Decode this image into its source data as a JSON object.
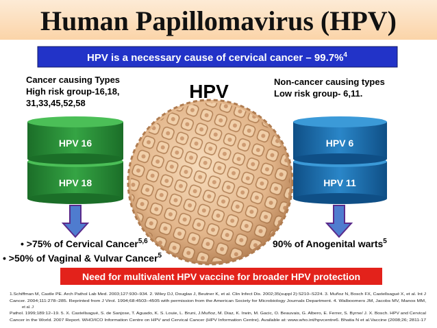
{
  "title": "Human Papillomavirus (HPV)",
  "banner": {
    "text": "HPV is a necessary cause of cervical cancer – 99.7%",
    "sup": "4"
  },
  "left": {
    "lines": [
      "Cancer causing Types",
      "High risk group-16,18,",
      "31,33,45,52,58"
    ],
    "cylinders": [
      "HPV 16",
      "HPV 18"
    ]
  },
  "center": {
    "label": "HPV"
  },
  "right": {
    "lines": [
      "Non-cancer causing types",
      "Low risk group- 6,11."
    ],
    "cylinders": [
      "HPV 6",
      "HPV 11"
    ]
  },
  "bullets": [
    {
      "text": "• >75% of Cervical Cancer",
      "sup": "5,6"
    },
    {
      "text": "• >50% of Vaginal & Vulvar Cancer",
      "sup": "5"
    },
    {
      "text": "90% of Anogenital warts",
      "sup": "5"
    }
  ],
  "call_to_action": "Need for multivalent HPV vaccine for broader HPV protection",
  "references": [
    "1.Schiffman M, Castle PE. Arch Pathol Lab Med. 2003;127:930–934. 2. Wiley DJ, Douglas J, Beutner K, et al. Clin Infect Dis. 2002;35(suppl 2):S210–S224. 3. Muñoz N, Bosch FX, Castellsagué X, et al. Int J",
    "Cancer. 2004;111:278–285. Reprinted from J Virol. 1994;68:4503–4505 with permission from the American Society for Microbiology Journals Department. 4. Walboomers JM, Jacobs MV, Manos MM,",
    "et al. J",
    "Pathol. 1999;189:12–19. 5. X. Castellsagué, S. de Sanjose, T. Aguado, K. S. Louie, L. Bruni, J.Muñoz, M. Diaz, K. Irwin, M. Gacic, O. Beauvais, G. Albero, E. Ferrer, S. Byrne/ J. X. Bosch. HPV and Cervical",
    "Cancer in the World. 2007 Report. WHO/ICO Information Centre on HPV and Cervical Cancer (HPV Information Centre). Available at: www.who.int/hpvcentre6. Bhatia N et al.Vaccine (2008;26; 2811-17"
  ]
}
